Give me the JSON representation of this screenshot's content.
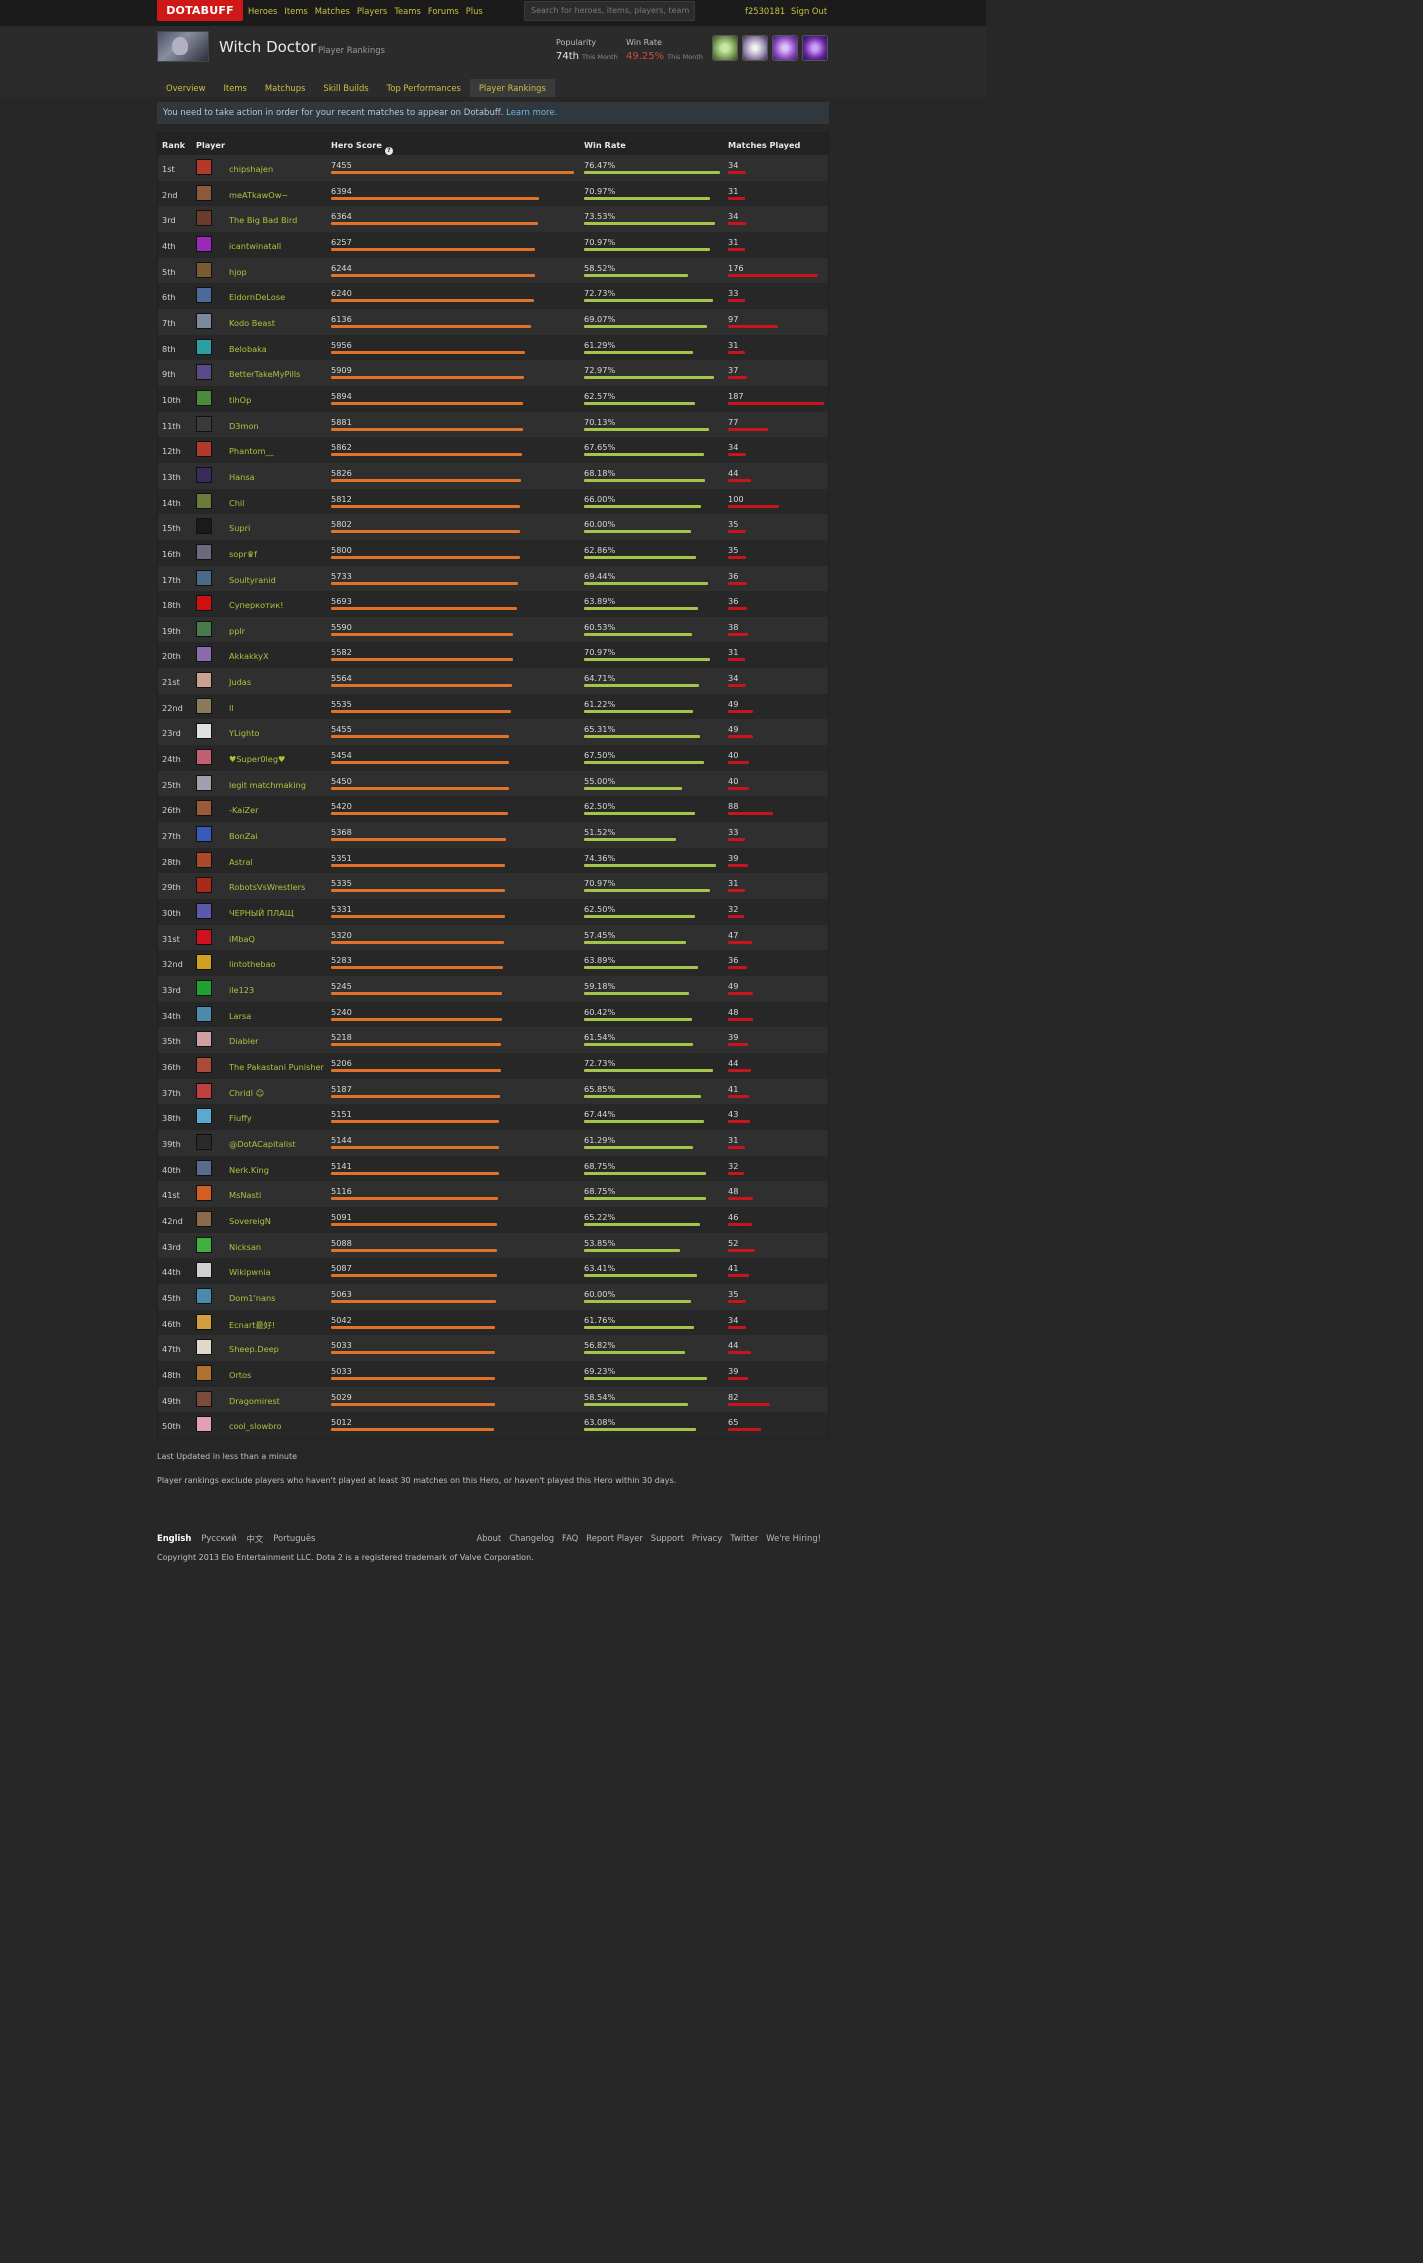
{
  "brand": {
    "logo": "DOTABUFF",
    "color": "#d11818"
  },
  "nav": [
    "Heroes",
    "Items",
    "Matches",
    "Players",
    "Teams",
    "Forums",
    "Plus"
  ],
  "search": {
    "placeholder": "Search for heroes, items, players, team"
  },
  "user": {
    "id": "f2530181",
    "signout": "Sign Out"
  },
  "hero": {
    "name": "Witch Doctor",
    "subtitle": "Player Rankings"
  },
  "stats": {
    "popularity_label": "Popularity",
    "popularity_value": "74th",
    "popularity_period": "This Month",
    "winrate_label": "Win Rate",
    "winrate_value": "49.25%",
    "winrate_period": "This Month"
  },
  "abilities": [
    "paralyzing-cask-icon",
    "voodoo-restoration-icon",
    "maledict-icon",
    "death-ward-icon"
  ],
  "tabs": [
    "Overview",
    "Items",
    "Matchups",
    "Skill Builds",
    "Top Performances",
    "Player Rankings"
  ],
  "active_tab": "Player Rankings",
  "notice": {
    "text": "You need to take action in order for your recent matches to appear on Dotabuff.",
    "link": "Learn more."
  },
  "table": {
    "headers": {
      "rank": "Rank",
      "player": "Player",
      "score": "Hero Score",
      "winrate": "Win Rate",
      "matches": "Matches Played"
    },
    "rows": [
      {
        "rank": "1st",
        "player": "chipshajen",
        "score": 7455,
        "winrate": "76.47%",
        "matches": 34,
        "avatar": "#b23a2a"
      },
      {
        "rank": "2nd",
        "player": "meATkawOw~",
        "score": 6394,
        "winrate": "70.97%",
        "matches": 31,
        "avatar": "#8a5a3a"
      },
      {
        "rank": "3rd",
        "player": "The Big Bad Bird",
        "score": 6364,
        "winrate": "73.53%",
        "matches": 34,
        "avatar": "#6b3b2b"
      },
      {
        "rank": "4th",
        "player": "icantwinatall",
        "score": 6257,
        "winrate": "70.97%",
        "matches": 31,
        "avatar": "#9a28b8"
      },
      {
        "rank": "5th",
        "player": "hjop",
        "score": 6244,
        "winrate": "58.52%",
        "matches": 176,
        "avatar": "#7a5a30"
      },
      {
        "rank": "6th",
        "player": "EldornDeLose",
        "score": 6240,
        "winrate": "72.73%",
        "matches": 33,
        "avatar": "#4a6a9a"
      },
      {
        "rank": "7th",
        "player": "Kodo Beast",
        "score": 6136,
        "winrate": "69.07%",
        "matches": 97,
        "avatar": "#7a8a9a"
      },
      {
        "rank": "8th",
        "player": "Belobaka",
        "score": 5956,
        "winrate": "61.29%",
        "matches": 31,
        "avatar": "#2aa0a0"
      },
      {
        "rank": "9th",
        "player": "BetterTakeMyPills",
        "score": 5909,
        "winrate": "72.97%",
        "matches": 37,
        "avatar": "#5a4a8a"
      },
      {
        "rank": "10th",
        "player": "tihOp",
        "score": 5894,
        "winrate": "62.57%",
        "matches": 187,
        "avatar": "#4a8a3a"
      },
      {
        "rank": "11th",
        "player": "D3mon",
        "score": 5881,
        "winrate": "70.13%",
        "matches": 77,
        "avatar": "#3a3a3a"
      },
      {
        "rank": "12th",
        "player": "Phantom__",
        "score": 5862,
        "winrate": "67.65%",
        "matches": 34,
        "avatar": "#b23a2a"
      },
      {
        "rank": "13th",
        "player": "Hansa",
        "score": 5826,
        "winrate": "68.18%",
        "matches": 44,
        "avatar": "#3a2a5a"
      },
      {
        "rank": "14th",
        "player": "Chil",
        "score": 5812,
        "winrate": "66.00%",
        "matches": 100,
        "avatar": "#6a7a3a"
      },
      {
        "rank": "15th",
        "player": "Supri",
        "score": 5802,
        "winrate": "60.00%",
        "matches": 35,
        "avatar": "#1a1a1a"
      },
      {
        "rank": "16th",
        "player": "sopr♛f",
        "score": 5800,
        "winrate": "62.86%",
        "matches": 35,
        "avatar": "#6a6a7a"
      },
      {
        "rank": "17th",
        "player": "Soultyranid",
        "score": 5733,
        "winrate": "69.44%",
        "matches": 36,
        "avatar": "#4a6a8a"
      },
      {
        "rank": "18th",
        "player": "Суперкотик!",
        "score": 5693,
        "winrate": "63.89%",
        "matches": 36,
        "avatar": "#d01010"
      },
      {
        "rank": "19th",
        "player": "pplr",
        "score": 5590,
        "winrate": "60.53%",
        "matches": 38,
        "avatar": "#4a7a4a"
      },
      {
        "rank": "20th",
        "player": "AkkakkyX",
        "score": 5582,
        "winrate": "70.97%",
        "matches": 31,
        "avatar": "#8a6aaa"
      },
      {
        "rank": "21st",
        "player": "Judas",
        "score": 5564,
        "winrate": "64.71%",
        "matches": 34,
        "avatar": "#caa090"
      },
      {
        "rank": "22nd",
        "player": "ll",
        "score": 5535,
        "winrate": "61.22%",
        "matches": 49,
        "avatar": "#8a7a5a"
      },
      {
        "rank": "23rd",
        "player": "YLighto",
        "score": 5455,
        "winrate": "65.31%",
        "matches": 49,
        "avatar": "#e0e0e0"
      },
      {
        "rank": "24th",
        "player": "♥Super0leg♥",
        "score": 5454,
        "winrate": "67.50%",
        "matches": 40,
        "avatar": "#c06070"
      },
      {
        "rank": "25th",
        "player": "legit matchmaking",
        "score": 5450,
        "winrate": "55.00%",
        "matches": 40,
        "avatar": "#a0a0b0"
      },
      {
        "rank": "26th",
        "player": "-KaiZer",
        "score": 5420,
        "winrate": "62.50%",
        "matches": 88,
        "avatar": "#9a5a3a"
      },
      {
        "rank": "27th",
        "player": "BonZai",
        "score": 5368,
        "winrate": "51.52%",
        "matches": 33,
        "avatar": "#3a5aba"
      },
      {
        "rank": "28th",
        "player": "Astral",
        "score": 5351,
        "winrate": "74.36%",
        "matches": 39,
        "avatar": "#aa4a2a"
      },
      {
        "rank": "29th",
        "player": "RobotsVsWrestlers",
        "score": 5335,
        "winrate": "70.97%",
        "matches": 31,
        "avatar": "#aa2a1a"
      },
      {
        "rank": "30th",
        "player": "ЧЕРНЫЙ ПЛАЩ",
        "score": 5331,
        "winrate": "62.50%",
        "matches": 32,
        "avatar": "#5a5aaa"
      },
      {
        "rank": "31st",
        "player": "iMbaQ",
        "score": 5320,
        "winrate": "57.45%",
        "matches": 47,
        "avatar": "#d01020"
      },
      {
        "rank": "32nd",
        "player": "lintothebao",
        "score": 5283,
        "winrate": "63.89%",
        "matches": 36,
        "avatar": "#d0a020"
      },
      {
        "rank": "33rd",
        "player": "ile123",
        "score": 5245,
        "winrate": "59.18%",
        "matches": 49,
        "avatar": "#20a030"
      },
      {
        "rank": "34th",
        "player": "Larsa",
        "score": 5240,
        "winrate": "60.42%",
        "matches": 48,
        "avatar": "#4a8aaa"
      },
      {
        "rank": "35th",
        "player": "Diabler",
        "score": 5218,
        "winrate": "61.54%",
        "matches": 39,
        "avatar": "#d0a0a0"
      },
      {
        "rank": "36th",
        "player": "The Pakastani Punisher",
        "score": 5206,
        "winrate": "72.73%",
        "matches": 44,
        "avatar": "#aa4a3a"
      },
      {
        "rank": "37th",
        "player": "Chridl ☺",
        "score": 5187,
        "winrate": "65.85%",
        "matches": 41,
        "avatar": "#c04040"
      },
      {
        "rank": "38th",
        "player": "Fluffy",
        "score": 5151,
        "winrate": "67.44%",
        "matches": 43,
        "avatar": "#5aaad0"
      },
      {
        "rank": "39th",
        "player": "@DotACapitalist",
        "score": 5144,
        "winrate": "61.29%",
        "matches": 31,
        "avatar": "#2a2a2a"
      },
      {
        "rank": "40th",
        "player": "Nerk.King",
        "score": 5141,
        "winrate": "68.75%",
        "matches": 32,
        "avatar": "#5a6a8a"
      },
      {
        "rank": "41st",
        "player": "MsNasti",
        "score": 5116,
        "winrate": "68.75%",
        "matches": 48,
        "avatar": "#d06020"
      },
      {
        "rank": "42nd",
        "player": "SovereigN",
        "score": 5091,
        "winrate": "65.22%",
        "matches": 46,
        "avatar": "#8a6a4a"
      },
      {
        "rank": "43rd",
        "player": "Nicksan",
        "score": 5088,
        "winrate": "53.85%",
        "matches": 52,
        "avatar": "#40b040"
      },
      {
        "rank": "44th",
        "player": "Wikipwnia",
        "score": 5087,
        "winrate": "63.41%",
        "matches": 41,
        "avatar": "#d0d0d0"
      },
      {
        "rank": "45th",
        "player": "Dom1'nans",
        "score": 5063,
        "winrate": "60.00%",
        "matches": 35,
        "avatar": "#4a8ab0"
      },
      {
        "rank": "46th",
        "player": "Ecnart最好!",
        "score": 5042,
        "winrate": "61.76%",
        "matches": 34,
        "avatar": "#d0a040"
      },
      {
        "rank": "47th",
        "player": "Sheep.Deep",
        "score": 5033,
        "winrate": "56.82%",
        "matches": 44,
        "avatar": "#e0d8c8"
      },
      {
        "rank": "48th",
        "player": "Ortos",
        "score": 5033,
        "winrate": "69.23%",
        "matches": 39,
        "avatar": "#b07030"
      },
      {
        "rank": "49th",
        "player": "Dragomirest",
        "score": 5029,
        "winrate": "58.54%",
        "matches": 82,
        "avatar": "#7a4a3a"
      },
      {
        "rank": "50th",
        "player": "cool_slowbro",
        "score": 5012,
        "winrate": "63.08%",
        "matches": 65,
        "avatar": "#e0a0b0"
      }
    ]
  },
  "footer": {
    "updated": "Last Updated in less than a minute",
    "note": "Player rankings exclude players who haven't played at least 30 matches on this Hero, or haven't played this Hero within 30 days.",
    "languages": [
      "English",
      "Русский",
      "中文",
      "Português"
    ],
    "links": [
      "About",
      "Changelog",
      "FAQ",
      "Report Player",
      "Support",
      "Privacy",
      "Twitter",
      "We're Hiring!"
    ],
    "copyright": "Copyright 2013 Elo Entertainment LLC. Dota 2 is a registered trademark of Valve Corporation."
  }
}
